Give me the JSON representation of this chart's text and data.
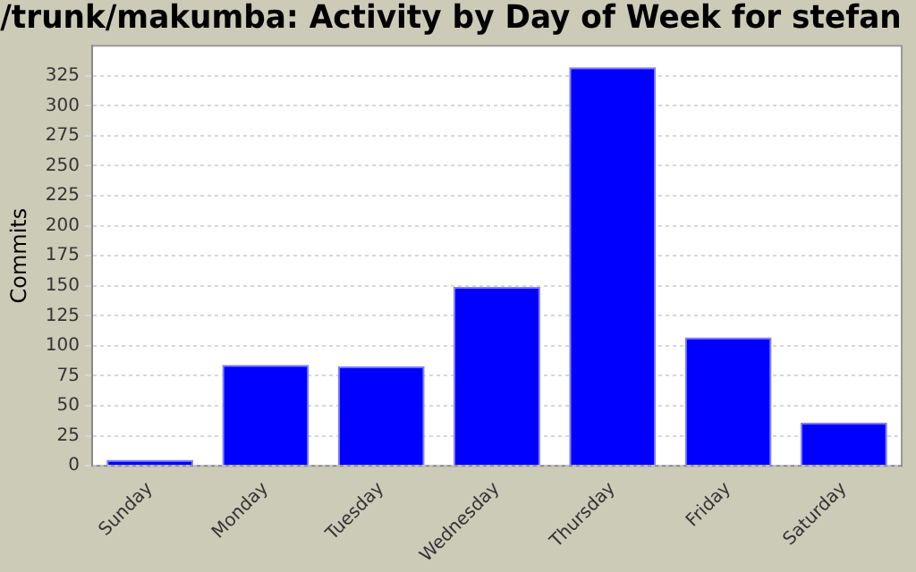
{
  "chart_data": {
    "type": "bar",
    "title": "/trunk/makumba: Activity by Day of Week for stefan",
    "ylabel": "Commits",
    "categories": [
      "Sunday",
      "Monday",
      "Tuesday",
      "Wednesday",
      "Thursday",
      "Friday",
      "Saturday"
    ],
    "values": [
      5,
      84,
      83,
      149,
      332,
      107,
      36
    ],
    "color": "#0000ff",
    "ylim": [
      0,
      350
    ],
    "yticks": [
      0,
      25,
      50,
      75,
      100,
      125,
      150,
      175,
      200,
      225,
      250,
      275,
      300,
      325
    ],
    "grid": "y",
    "legend": false
  }
}
